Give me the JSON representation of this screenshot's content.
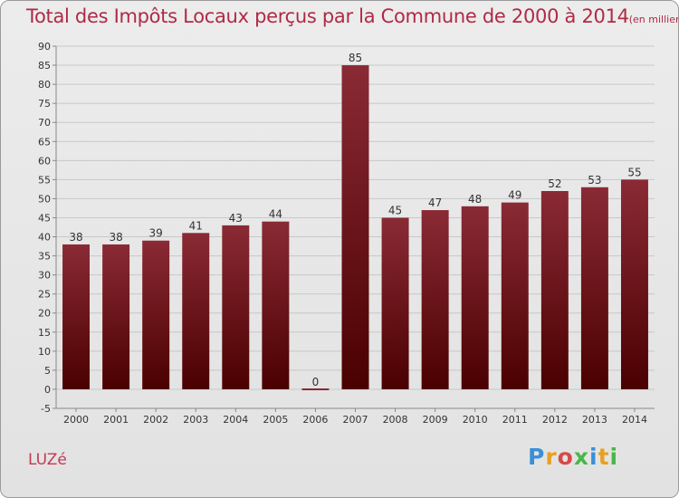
{
  "header": {
    "title": "Total des Impôts Locaux perçus par la Commune de 2000 à 2014",
    "unit": "(en milliers d'€)"
  },
  "footer": {
    "commune": "LUZé",
    "brand": "Proxiti"
  },
  "colors": {
    "bar_top": "#8a2a35",
    "bar_bottom": "#4a0000",
    "title": "#b02a45",
    "grid": "#c8c8c8"
  },
  "chart_data": {
    "type": "bar",
    "title": "Total des Impôts Locaux perçus par la Commune de 2000 à 2014",
    "xlabel": "",
    "ylabel": "",
    "ylim": [
      -5,
      90
    ],
    "ytick_step": 5,
    "categories": [
      "2000",
      "2001",
      "2002",
      "2003",
      "2004",
      "2005",
      "2006",
      "2007",
      "2008",
      "2009",
      "2010",
      "2011",
      "2012",
      "2013",
      "2014"
    ],
    "values": [
      38,
      38,
      39,
      41,
      43,
      44,
      0,
      85,
      45,
      47,
      48,
      49,
      52,
      53,
      55
    ],
    "legend": "none",
    "grid": true
  }
}
